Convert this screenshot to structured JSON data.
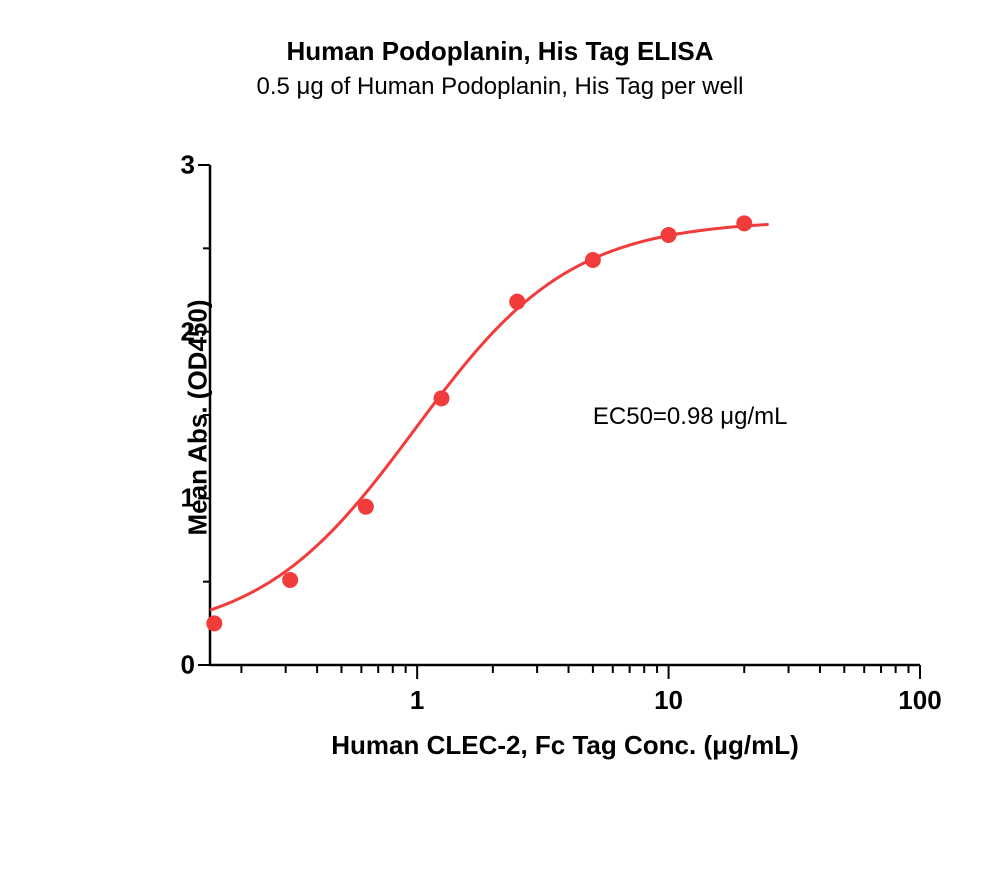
{
  "chart": {
    "type": "scatter-with-fit",
    "title": "Human Podoplanin, His Tag ELISA",
    "subtitle": "0.5 μg of Human Podoplanin, His Tag per well",
    "x_axis": {
      "label": "Human CLEC-2, Fc Tag Conc. (μg/mL)",
      "scale": "log",
      "min": 0.15,
      "max": 100,
      "major_ticks": [
        1,
        10,
        100
      ],
      "major_tick_labels": [
        "1",
        "10",
        "100"
      ]
    },
    "y_axis": {
      "label": "Mean Abs. (OD450)",
      "scale": "linear",
      "min": 0,
      "max": 3,
      "major_ticks": [
        0,
        1,
        2,
        3
      ],
      "major_tick_labels": [
        "0",
        "1",
        "2",
        "3"
      ]
    },
    "annotation": "EC50=0.98 μg/mL",
    "series": {
      "color": "#f23b3b",
      "marker_radius": 8,
      "line_width": 3,
      "points": [
        {
          "x": 0.156,
          "y": 0.25
        },
        {
          "x": 0.3125,
          "y": 0.51
        },
        {
          "x": 0.625,
          "y": 0.95
        },
        {
          "x": 1.25,
          "y": 1.6
        },
        {
          "x": 2.5,
          "y": 2.18
        },
        {
          "x": 5,
          "y": 2.43
        },
        {
          "x": 10,
          "y": 2.58
        },
        {
          "x": 20,
          "y": 2.65
        }
      ],
      "fit": {
        "type": "4pl",
        "bottom": 0.16,
        "top": 2.67,
        "ec50": 0.98,
        "hill": 1.4
      }
    },
    "background_color": "#ffffff",
    "axis_color": "#000000",
    "text_color": "#000000",
    "title_fontsize": 26,
    "subtitle_fontsize": 24,
    "label_fontsize": 26,
    "tick_fontsize": 26,
    "annotation_fontsize": 24
  }
}
